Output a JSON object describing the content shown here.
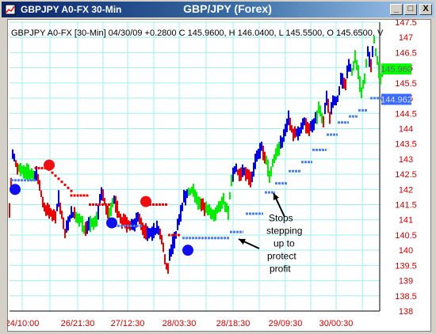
{
  "window": {
    "title_left": "GBPJPY A0-FX 30-Min",
    "title_center": "GBP/JPY (Forex)",
    "buttons": {
      "minimize": "_",
      "maximize": "□",
      "close": "X"
    }
  },
  "colors": {
    "titlebar": "#0a246a",
    "up_bar": "#0000ee",
    "down_bar": "#ee0000",
    "consolidation_bar": "#00ee00",
    "stop_dots": "#4a7ff0",
    "grid": "#9ef0f0",
    "axis_text_red": "#cc0000",
    "axis_text_blue": "#0000cc"
  },
  "chart_data": {
    "type": "bar",
    "subtype": "ohlc-price-chart",
    "info_line": "GBPJPY A0-FX [30-Min] 04/30/09 +0.2800 C 145.9600, H 146.0400, L 145.5500, O 145.6500, V",
    "ylim": [
      138,
      147.5
    ],
    "y_ticks": [
      "147.5",
      "147",
      "146.5",
      "146",
      "145.5",
      "145",
      "144.5",
      "144",
      "143.5",
      "143",
      "142.5",
      "142",
      "141.5",
      "141",
      "140.5",
      "140",
      "139.5",
      "139",
      "138.5",
      "138"
    ],
    "x_ticks": [
      "24/10:00",
      "26/21:30",
      "27/12:30",
      "28/03:30",
      "28/18:30",
      "29/09:30",
      "30/00:30"
    ],
    "grid": true,
    "last_price_label": "145.960",
    "stop_price_label": "144.962",
    "annotation": {
      "lines": [
        "Stops",
        "stepping",
        "up to",
        "protect",
        "profit"
      ]
    },
    "price_path": [
      [
        0,
        141.3
      ],
      [
        4,
        143.2
      ],
      [
        10,
        142.7
      ],
      [
        20,
        142.6
      ],
      [
        28,
        142.5
      ],
      [
        35,
        142.5
      ],
      [
        44,
        141.4
      ],
      [
        58,
        141.1
      ],
      [
        62,
        141.7
      ],
      [
        70,
        140.6
      ],
      [
        78,
        141.2
      ],
      [
        90,
        141.0
      ],
      [
        95,
        140.6
      ],
      [
        100,
        140.8
      ],
      [
        106,
        140.9
      ],
      [
        111,
        141.0
      ],
      [
        115,
        142.0
      ],
      [
        125,
        141.2
      ],
      [
        132,
        141.7
      ],
      [
        140,
        141.0
      ],
      [
        150,
        140.8
      ],
      [
        158,
        140.8
      ],
      [
        162,
        141.1
      ],
      [
        170,
        140.6
      ],
      [
        180,
        140.6
      ],
      [
        188,
        140.7
      ],
      [
        194,
        140.1
      ],
      [
        199,
        139.3
      ],
      [
        203,
        139.9
      ],
      [
        210,
        140.5
      ],
      [
        220,
        141.7
      ],
      [
        230,
        142.0
      ],
      [
        240,
        141.5
      ],
      [
        250,
        141.3
      ],
      [
        258,
        141.2
      ],
      [
        265,
        141.4
      ],
      [
        270,
        141.6
      ],
      [
        276,
        141.2
      ],
      [
        280,
        142.4
      ],
      [
        286,
        142.7
      ],
      [
        290,
        142.4
      ],
      [
        296,
        142.6
      ],
      [
        305,
        142.3
      ],
      [
        310,
        142.9
      ],
      [
        318,
        143.4
      ],
      [
        323,
        143.0
      ],
      [
        328,
        142.5
      ],
      [
        333,
        142.9
      ],
      [
        340,
        143.4
      ],
      [
        346,
        143.7
      ],
      [
        352,
        144.3
      ],
      [
        358,
        143.8
      ],
      [
        365,
        143.9
      ],
      [
        372,
        144.2
      ],
      [
        378,
        144.0
      ],
      [
        385,
        144.2
      ],
      [
        390,
        144.6
      ],
      [
        396,
        144.3
      ],
      [
        400,
        145.0
      ],
      [
        404,
        144.4
      ],
      [
        408,
        144.8
      ],
      [
        414,
        145.0
      ],
      [
        418,
        145.6
      ],
      [
        424,
        145.5
      ],
      [
        428,
        146.1
      ],
      [
        432,
        145.9
      ],
      [
        436,
        146.3
      ],
      [
        440,
        145.8
      ],
      [
        444,
        145.1
      ],
      [
        448,
        145.7
      ],
      [
        452,
        146.5
      ],
      [
        456,
        146.1
      ],
      [
        460,
        146.9
      ],
      [
        464,
        146.2
      ],
      [
        468,
        145.7
      ],
      [
        470,
        145.9
      ]
    ],
    "green_ranges": [
      [
        12,
        30
      ],
      [
        84,
        94
      ],
      [
        102,
        110
      ],
      [
        125,
        131
      ],
      [
        226,
        241
      ],
      [
        248,
        280
      ],
      [
        323,
        340
      ],
      [
        388,
        395
      ],
      [
        432,
        450
      ],
      [
        460,
        470
      ]
    ],
    "stop_segments": [
      {
        "x0": 2,
        "x1": 33,
        "y": 142.3,
        "kind": "long"
      },
      {
        "x0": 33,
        "x1": 50,
        "y": 142.7,
        "kind": "short_dots"
      },
      {
        "x0": 50,
        "x1": 78,
        "y": 142.3,
        "kind": "short_dots_descending"
      },
      {
        "x0": 78,
        "x1": 100,
        "y": 141.8,
        "kind": "short_dots"
      },
      {
        "x0": 100,
        "x1": 128,
        "y": 141.5,
        "kind": "short"
      },
      {
        "x0": 128,
        "x1": 168,
        "y": 140.8,
        "kind": "long"
      },
      {
        "x0": 168,
        "x1": 200,
        "y": 141.5,
        "kind": "short"
      },
      {
        "x0": 200,
        "x1": 215,
        "y": 140.5,
        "kind": "short"
      },
      {
        "x0": 218,
        "x1": 250,
        "y": 140.4,
        "kind": "long"
      },
      {
        "x0": 250,
        "x1": 278,
        "y": 140.4,
        "kind": "long"
      },
      {
        "x0": 278,
        "x1": 295,
        "y": 140.6,
        "kind": "long"
      },
      {
        "x0": 298,
        "x1": 320,
        "y": 141.2,
        "kind": "long"
      },
      {
        "x0": 322,
        "x1": 335,
        "y": 141.9,
        "kind": "long"
      },
      {
        "x0": 335,
        "x1": 350,
        "y": 142.2,
        "kind": "long"
      },
      {
        "x0": 352,
        "x1": 368,
        "y": 142.6,
        "kind": "long"
      },
      {
        "x0": 368,
        "x1": 382,
        "y": 142.9,
        "kind": "long"
      },
      {
        "x0": 382,
        "x1": 400,
        "y": 143.3,
        "kind": "long"
      },
      {
        "x0": 400,
        "x1": 414,
        "y": 143.8,
        "kind": "long"
      },
      {
        "x0": 414,
        "x1": 428,
        "y": 144.2,
        "kind": "long"
      },
      {
        "x0": 428,
        "x1": 440,
        "y": 144.4,
        "kind": "long"
      },
      {
        "x0": 440,
        "x1": 452,
        "y": 144.6,
        "kind": "long"
      },
      {
        "x0": 455,
        "x1": 470,
        "y": 145.0,
        "kind": "long"
      }
    ],
    "signals": [
      {
        "x": 7,
        "y": 142.0,
        "kind": "buy"
      },
      {
        "x": 50,
        "y": 142.8,
        "kind": "sell"
      },
      {
        "x": 129,
        "y": 140.9,
        "kind": "buy"
      },
      {
        "x": 172,
        "y": 141.6,
        "kind": "sell"
      },
      {
        "x": 225,
        "y": 140.0,
        "kind": "buy"
      }
    ]
  }
}
